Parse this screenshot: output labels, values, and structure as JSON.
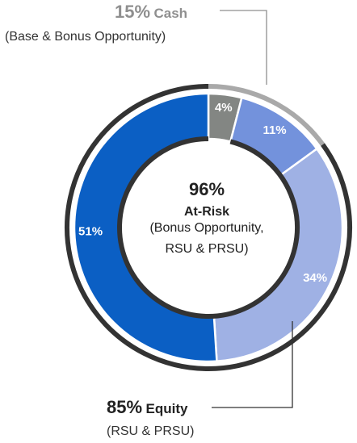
{
  "chart_data": {
    "type": "pie",
    "inner": {
      "slices": [
        {
          "label": "4%",
          "value": 4,
          "color": "#838683"
        },
        {
          "label": "11%",
          "value": 11,
          "color": "#7392dc"
        },
        {
          "label": "34%",
          "value": 34,
          "color": "#9fb1e4"
        },
        {
          "label": "51%",
          "value": 51,
          "color": "#0b5fc4"
        }
      ]
    },
    "outer": {
      "groups": [
        {
          "pct": "15%",
          "name": "Cash",
          "detail": "(Base & Bonus Opportunity)",
          "value": 15,
          "color": "#a9a9a9"
        },
        {
          "pct": "85%",
          "name": "Equity",
          "detail": "(RSU & PRSU)",
          "value": 85,
          "color": "#333333"
        }
      ]
    },
    "center": {
      "pct": "96%",
      "title": "At-Risk",
      "line1": "(Bonus Opportunity,",
      "line2": "RSU & PRSU)",
      "arc_value": 96,
      "arc_color": "#333333"
    }
  }
}
